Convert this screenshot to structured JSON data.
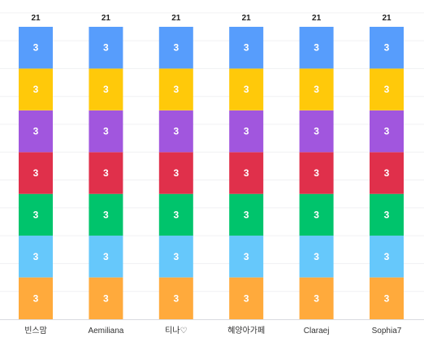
{
  "chart_data": {
    "type": "bar",
    "stacked": true,
    "categories": [
      "빈스맘",
      "Aemiliana",
      "티나♡",
      "혜양아가페",
      "Claraej",
      "Sophia7"
    ],
    "series": [
      {
        "color": "#ffaa3c",
        "values": [
          3,
          3,
          3,
          3,
          3,
          3
        ]
      },
      {
        "color": "#66c8fb",
        "values": [
          3,
          3,
          3,
          3,
          3,
          3
        ]
      },
      {
        "color": "#00c46c",
        "values": [
          3,
          3,
          3,
          3,
          3,
          3
        ]
      },
      {
        "color": "#e0304b",
        "values": [
          3,
          3,
          3,
          3,
          3,
          3
        ]
      },
      {
        "color": "#a156de",
        "values": [
          3,
          3,
          3,
          3,
          3,
          3
        ]
      },
      {
        "color": "#ffc90a",
        "values": [
          3,
          3,
          3,
          3,
          3,
          3
        ]
      },
      {
        "color": "#579dfc",
        "values": [
          3,
          3,
          3,
          3,
          3,
          3
        ]
      }
    ],
    "totals": [
      21,
      21,
      21,
      21,
      21,
      21
    ],
    "ylim": [
      0,
      21
    ],
    "grid": true,
    "legend": "none"
  }
}
